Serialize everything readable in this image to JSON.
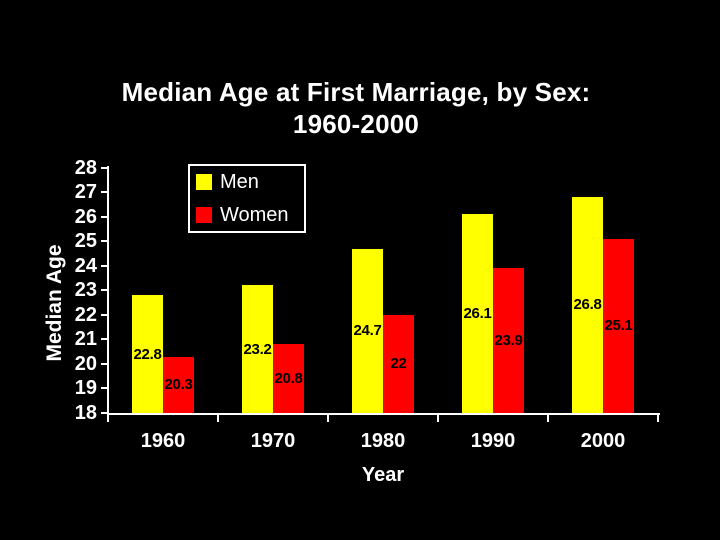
{
  "chart_data": {
    "type": "bar",
    "title": "Median Age at First Marriage, by Sex: 1960-2000",
    "title_line1": "Median Age at First Marriage, by Sex:",
    "title_line2": "1960-2000",
    "categories": [
      "1960",
      "1970",
      "1980",
      "1990",
      "2000"
    ],
    "series": [
      {
        "name": "Men",
        "color": "#ffff00",
        "values": [
          22.8,
          23.2,
          24.7,
          26.1,
          26.8
        ],
        "value_labels": [
          "22.8",
          "23.2",
          "24.7",
          "26.1",
          "26.8"
        ]
      },
      {
        "name": "Women",
        "color": "#ff0000",
        "values": [
          20.3,
          20.8,
          22,
          23.9,
          25.1
        ],
        "value_labels": [
          "20.3",
          "20.8",
          "22",
          "23.9",
          "25.1"
        ]
      }
    ],
    "xlabel": "Year",
    "ylabel": "Median Age",
    "ylim": [
      18,
      28
    ],
    "yticks": [
      18,
      19,
      20,
      21,
      22,
      23,
      24,
      25,
      26,
      27,
      28
    ],
    "grid": false,
    "legend_position": "top-left-inside",
    "background_color": "#000000",
    "axis_color": "#ffffff",
    "text_color": "#ffffff",
    "value_label_color": "#000000"
  }
}
